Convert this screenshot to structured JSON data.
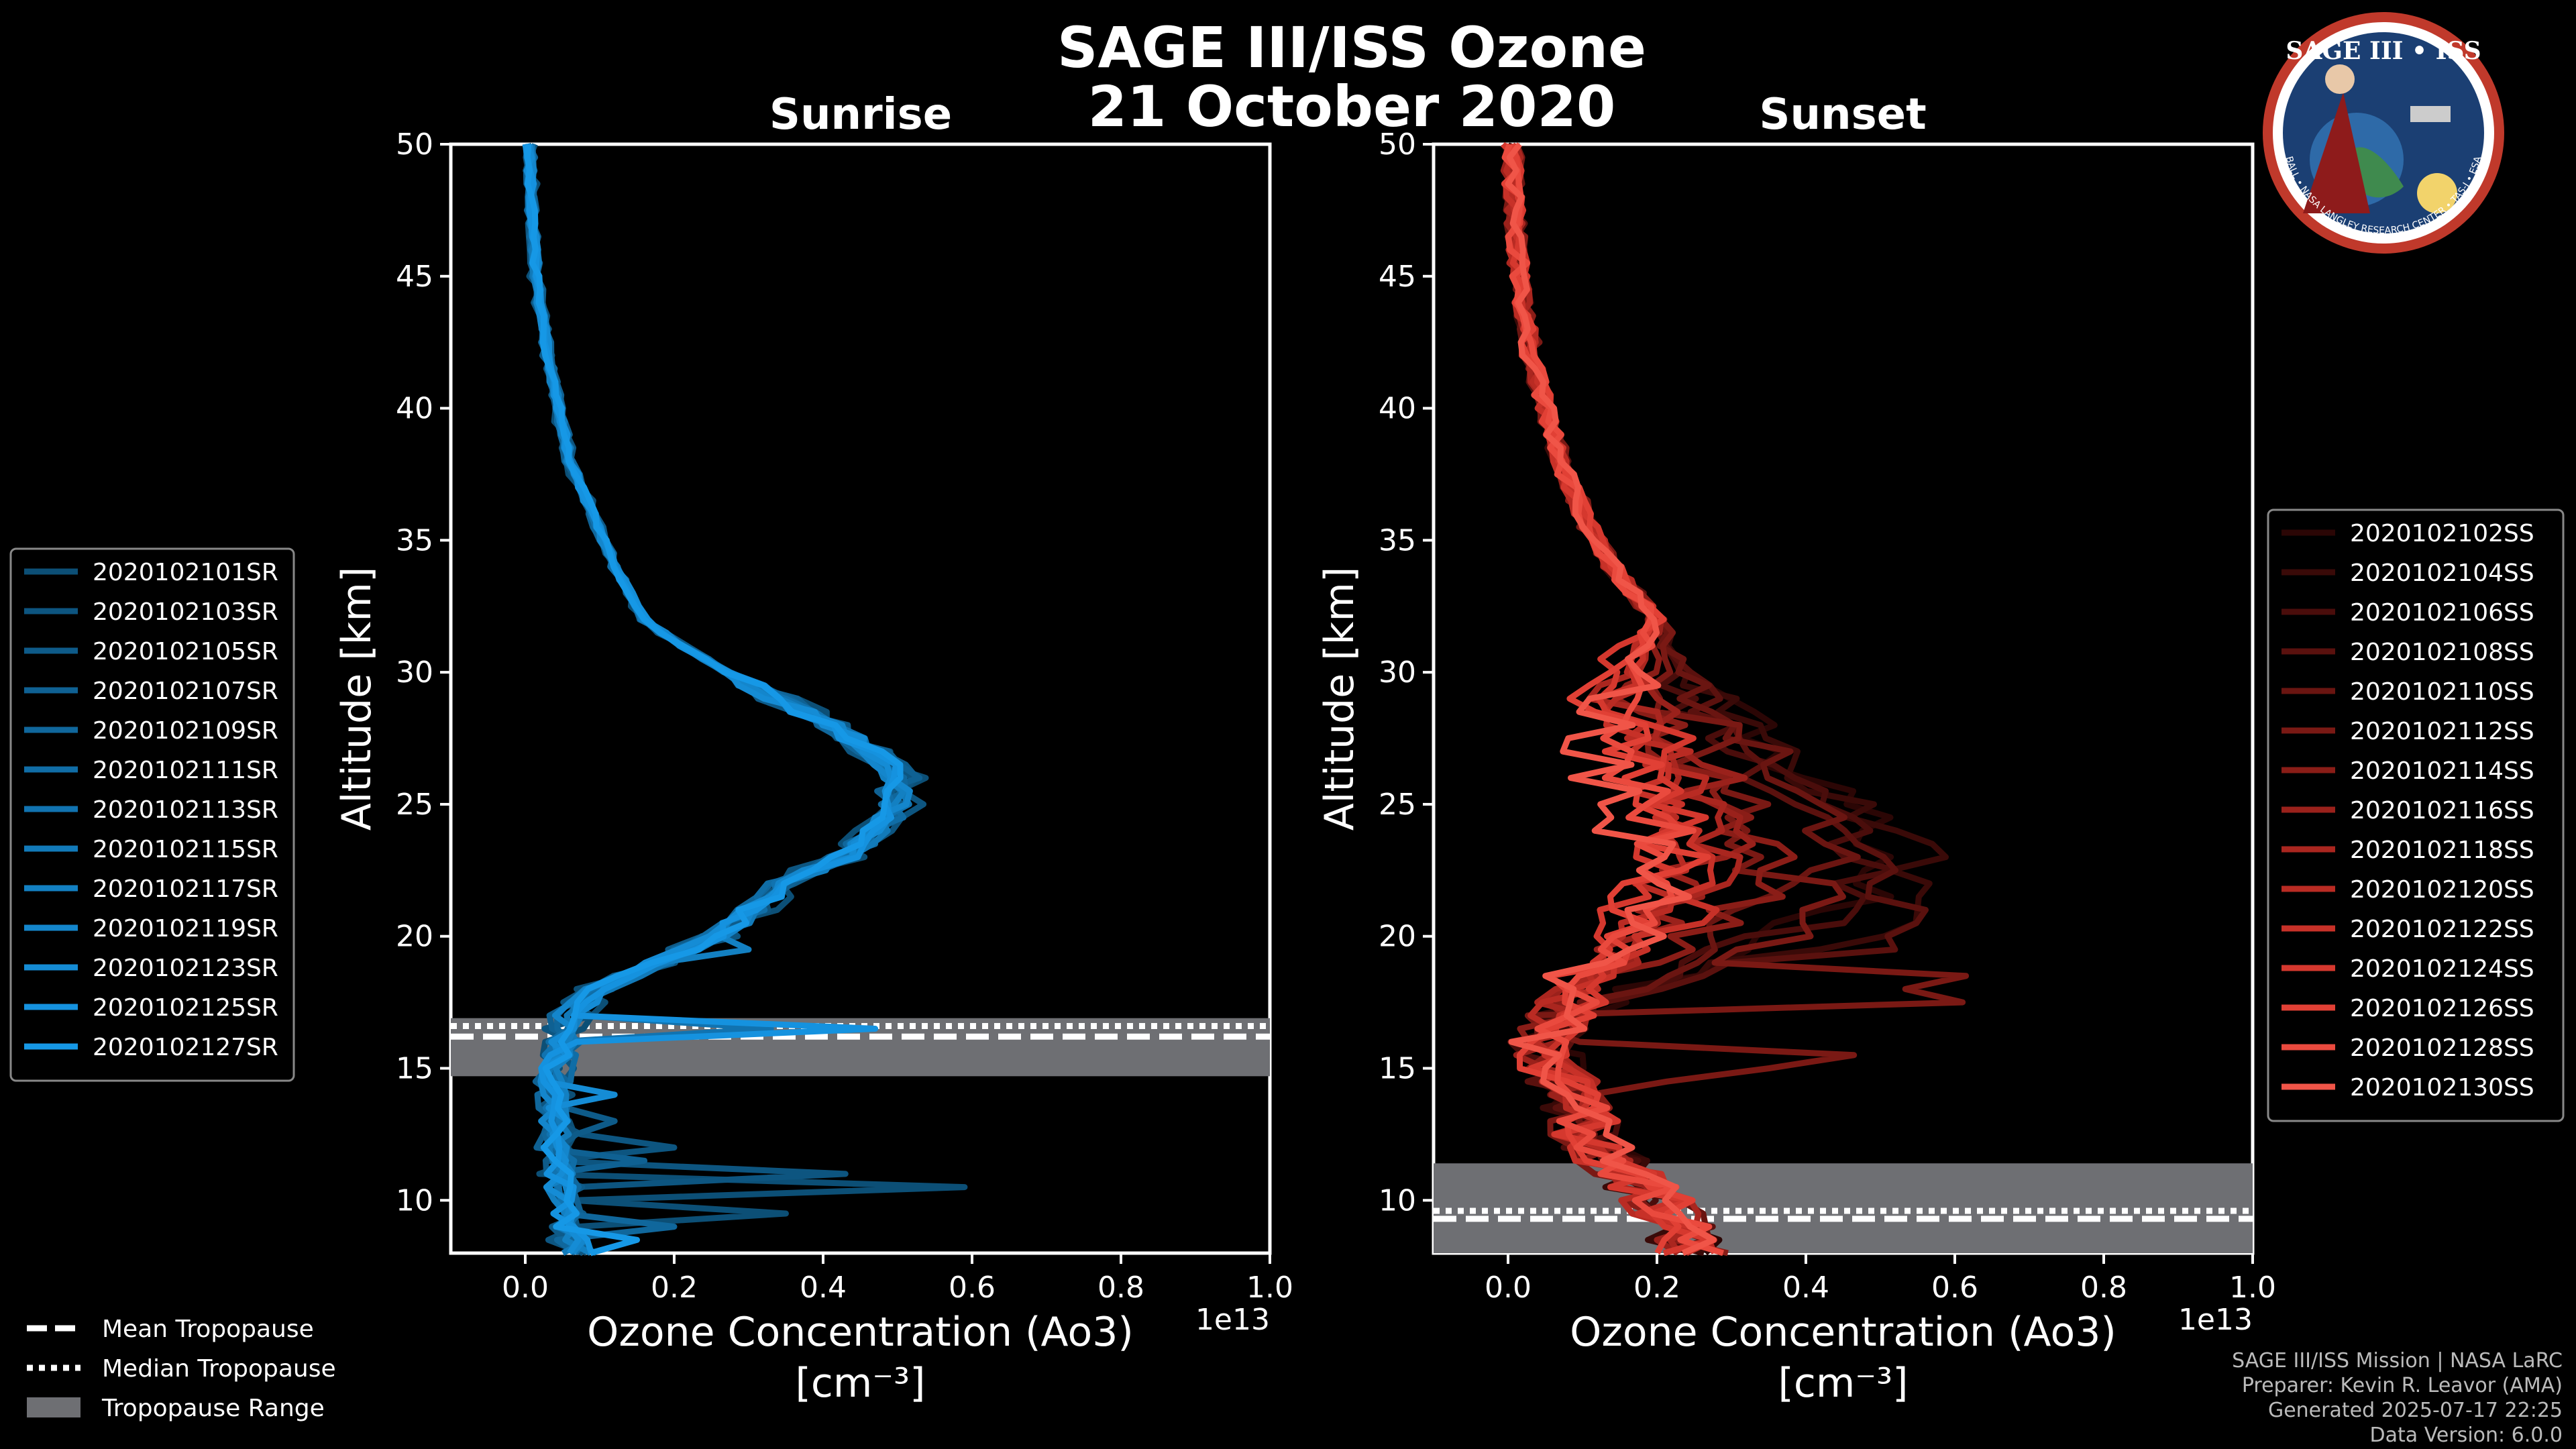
{
  "figure": {
    "title_line1": "SAGE III/ISS Ozone",
    "title_line2": "21 October 2020",
    "logo": {
      "top_text": "SAGE III • ISS",
      "ring_text": "BALL • NASA LANGLEY RESEARCH CENTER • TAS-I • ESA",
      "icon": "sage-iii-iss-mission-patch"
    },
    "credits": [
      "SAGE III/ISS Mission | NASA LaRC",
      "Preparer: Kevin R. Leavor (AMA)",
      "Generated 2025-07-17 22:25",
      "Data Version: 6.0.0"
    ],
    "tropo_legend": [
      {
        "label": "Mean Tropopause",
        "style": "dashed"
      },
      {
        "label": "Median Tropopause",
        "style": "dotted"
      },
      {
        "label": "Tropopause Range",
        "style": "band"
      }
    ]
  },
  "chart_data": [
    {
      "type": "line",
      "panel": "sunrise",
      "title": "Sunrise",
      "xlabel_line1": "Ozone Concentration (Ao3)",
      "xlabel_line2": "[cm⁻³]",
      "ylabel": "Altitude [km]",
      "x_offset_label": "1e13",
      "xlim": [
        -0.1,
        1.0
      ],
      "ylim": [
        8,
        50
      ],
      "xticks": [
        0.0,
        0.2,
        0.4,
        0.6,
        0.8,
        1.0
      ],
      "xtick_labels": [
        "0.0",
        "0.2",
        "0.4",
        "0.6",
        "0.8",
        "1.0"
      ],
      "yticks": [
        10,
        15,
        20,
        25,
        30,
        35,
        40,
        45,
        50
      ],
      "ytick_labels": [
        "10",
        "15",
        "20",
        "25",
        "30",
        "35",
        "40",
        "45",
        "50"
      ],
      "colors": [
        "#0c4f76",
        "#0d5580",
        "#0e5b89",
        "#0f6193",
        "#10679c",
        "#106da6",
        "#1173b0",
        "#127ab9",
        "#1380c2",
        "#1486cc",
        "#158cd5",
        "#1592df",
        "#1698e6"
      ],
      "tropopause": {
        "mean": 16.2,
        "median": 16.6,
        "range": [
          14.7,
          16.9
        ]
      },
      "base_profile": [
        [
          0.07,
          8
        ],
        [
          0.05,
          10
        ],
        [
          0.04,
          12
        ],
        [
          0.04,
          14
        ],
        [
          0.04,
          15
        ],
        [
          0.05,
          16
        ],
        [
          0.06,
          17
        ],
        [
          0.1,
          18
        ],
        [
          0.18,
          19
        ],
        [
          0.26,
          20
        ],
        [
          0.35,
          22
        ],
        [
          0.43,
          23
        ],
        [
          0.47,
          24
        ],
        [
          0.5,
          25
        ],
        [
          0.5,
          26
        ],
        [
          0.47,
          27
        ],
        [
          0.41,
          28
        ],
        [
          0.34,
          29
        ],
        [
          0.27,
          30
        ],
        [
          0.21,
          31
        ],
        [
          0.16,
          32
        ],
        [
          0.12,
          34
        ],
        [
          0.09,
          36
        ],
        [
          0.06,
          38
        ],
        [
          0.045,
          40
        ],
        [
          0.03,
          42
        ],
        [
          0.015,
          45
        ],
        [
          0.008,
          48
        ],
        [
          0.005,
          50
        ]
      ],
      "series": [
        {
          "name": "2020102101SR",
          "jitter": 0.04,
          "spikes": [
            [
              10.3,
              0.59
            ],
            [
              9.6,
              0.35
            ]
          ]
        },
        {
          "name": "2020102103SR",
          "jitter": 0.035,
          "spikes": [
            [
              10.8,
              0.43
            ],
            [
              12.0,
              0.2
            ]
          ]
        },
        {
          "name": "2020102105SR",
          "jitter": 0.03,
          "spikes": [
            [
              13.0,
              0.12
            ]
          ]
        },
        {
          "name": "2020102107SR",
          "jitter": 0.03,
          "spikes": [
            [
              11.5,
              0.16
            ]
          ]
        },
        {
          "name": "2020102109SR",
          "jitter": 0.025,
          "spikes": [
            [
              9.0,
              0.2
            ]
          ]
        },
        {
          "name": "2020102111SR",
          "jitter": 0.025,
          "spikes": []
        },
        {
          "name": "2020102113SR",
          "jitter": 0.02,
          "spikes": [
            [
              16.5,
              0.33
            ]
          ]
        },
        {
          "name": "2020102115SR",
          "jitter": 0.02,
          "spikes": []
        },
        {
          "name": "2020102117SR",
          "jitter": 0.02,
          "spikes": [
            [
              19.5,
              0.3
            ]
          ]
        },
        {
          "name": "2020102119SR",
          "jitter": 0.02,
          "spikes": []
        },
        {
          "name": "2020102123SR",
          "jitter": 0.02,
          "spikes": [
            [
              14.0,
              0.12
            ]
          ]
        },
        {
          "name": "2020102125SR",
          "jitter": 0.02,
          "spikes": [
            [
              16.6,
              0.47
            ]
          ]
        },
        {
          "name": "2020102127SR",
          "jitter": 0.02,
          "spikes": [
            [
              8.5,
              0.15
            ]
          ]
        }
      ]
    },
    {
      "type": "line",
      "panel": "sunset",
      "title": "Sunset",
      "xlabel_line1": "Ozone Concentration (Ao3)",
      "xlabel_line2": "[cm⁻³]",
      "ylabel": "Altitude [km]",
      "x_offset_label": "1e13",
      "xlim": [
        -0.1,
        1.0
      ],
      "ylim": [
        8,
        50
      ],
      "xticks": [
        0.0,
        0.2,
        0.4,
        0.6,
        0.8,
        1.0
      ],
      "xtick_labels": [
        "0.0",
        "0.2",
        "0.4",
        "0.6",
        "0.8",
        "1.0"
      ],
      "yticks": [
        10,
        15,
        20,
        25,
        30,
        35,
        40,
        45,
        50
      ],
      "ytick_labels": [
        "10",
        "15",
        "20",
        "25",
        "30",
        "35",
        "40",
        "45",
        "50"
      ],
      "colors": [
        "#2b0605",
        "#3a0a08",
        "#4a0d0b",
        "#5a110e",
        "#6a1511",
        "#7a1914",
        "#8a1d17",
        "#9a211b",
        "#aa261f",
        "#b92b23",
        "#c73128",
        "#d5382e",
        "#e14035",
        "#ea4a3e",
        "#f05548"
      ],
      "tropopause": {
        "mean": 9.3,
        "median": 9.6,
        "range": [
          8.0,
          11.4
        ]
      },
      "series": [
        {
          "name": "2020102102SS",
          "peak_x": 0.52,
          "peak_alt": 22.5,
          "jitter": 0.05
        },
        {
          "name": "2020102104SS",
          "peak_x": 0.58,
          "peak_alt": 21.5,
          "jitter": 0.05
        },
        {
          "name": "2020102106SS",
          "peak_x": 0.48,
          "peak_alt": 22.0,
          "jitter": 0.05
        },
        {
          "name": "2020102108SS",
          "peak_x": 0.55,
          "peak_alt": 20.5,
          "jitter": 0.05
        },
        {
          "name": "2020102110SS",
          "peak_x": 0.45,
          "peak_alt": 23.0,
          "jitter": 0.05
        },
        {
          "name": "2020102112SS",
          "peak_x": 0.6,
          "peak_alt": 17.0,
          "jitter": 0.06
        },
        {
          "name": "2020102114SS",
          "peak_x": 0.35,
          "peak_alt": 22.0,
          "jitter": 0.05
        },
        {
          "name": "2020102116SS",
          "peak_x": 0.3,
          "peak_alt": 24.0,
          "jitter": 0.05
        },
        {
          "name": "2020102118SS",
          "peak_x": 0.28,
          "peak_alt": 23.0,
          "jitter": 0.05
        },
        {
          "name": "2020102120SS",
          "peak_x": 0.25,
          "peak_alt": 23.5,
          "jitter": 0.05
        },
        {
          "name": "2020102122SS",
          "peak_x": 0.27,
          "peak_alt": 22.0,
          "jitter": 0.05
        },
        {
          "name": "2020102124SS",
          "peak_x": 0.24,
          "peak_alt": 24.5,
          "jitter": 0.05
        },
        {
          "name": "2020102126SS",
          "peak_x": 0.22,
          "peak_alt": 23.0,
          "jitter": 0.05
        },
        {
          "name": "2020102128SS",
          "peak_x": 0.23,
          "peak_alt": 22.0,
          "jitter": 0.05
        },
        {
          "name": "2020102130SS",
          "peak_x": 0.2,
          "peak_alt": 21.0,
          "jitter": 0.05
        }
      ]
    }
  ]
}
